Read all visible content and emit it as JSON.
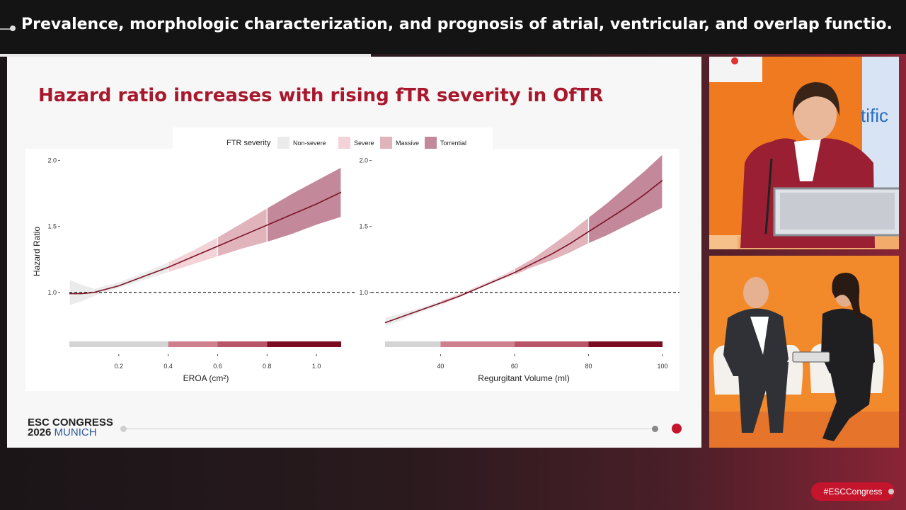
{
  "header": {
    "title": "Prevalence, morphologic characterization, and prognosis of atrial, ventricular, and overlap functio..."
  },
  "slide": {
    "title": "Hazard ratio increases with rising fTR severity in OfTR",
    "legend": {
      "title": "FTR severity",
      "items": [
        {
          "label": "Non-severe",
          "color": "#ebebeb"
        },
        {
          "label": "Severe",
          "color": "#f3d3d8"
        },
        {
          "label": "Massive",
          "color": "#e1b3bb"
        },
        {
          "label": "Torrential",
          "color": "#c3899a"
        }
      ]
    },
    "logo_line1": "ESC CONGRESS",
    "logo_year": "2026",
    "logo_city": "MUNICH"
  },
  "chart_data": [
    {
      "type": "line",
      "xlabel": "EROA (cm²)",
      "ylabel": "Hazard Ratio",
      "xlim": [
        0.0,
        1.1
      ],
      "ylim": [
        0.8,
        2.1
      ],
      "xticks": [
        "0.2",
        "0.4",
        "0.6",
        "0.8",
        "1.0"
      ],
      "yticks": [
        "1.0",
        "1.5",
        "2.0"
      ],
      "reference_line": 1.0,
      "series": [
        {
          "x": [
            0.0,
            0.05,
            0.1,
            0.2,
            0.3,
            0.4,
            0.5,
            0.6,
            0.7,
            0.8,
            0.9,
            1.0,
            1.1
          ],
          "y": [
            0.99,
            0.99,
            1.0,
            1.05,
            1.12,
            1.19,
            1.27,
            1.35,
            1.43,
            1.51,
            1.59,
            1.67,
            1.76
          ],
          "lower": [
            0.9,
            0.93,
            0.97,
            1.03,
            1.09,
            1.15,
            1.21,
            1.27,
            1.33,
            1.38,
            1.44,
            1.51,
            1.57
          ],
          "upper": [
            1.1,
            1.06,
            1.03,
            1.08,
            1.15,
            1.23,
            1.32,
            1.42,
            1.53,
            1.64,
            1.75,
            1.85,
            1.95
          ]
        }
      ],
      "severity_bands": [
        {
          "from": 0.0,
          "to": 0.4,
          "level": "Non-severe"
        },
        {
          "from": 0.4,
          "to": 0.6,
          "level": "Severe"
        },
        {
          "from": 0.6,
          "to": 0.8,
          "level": "Massive"
        },
        {
          "from": 0.8,
          "to": 1.1,
          "level": "Torrential"
        }
      ]
    },
    {
      "type": "line",
      "xlabel": "Regurgitant Volume (ml)",
      "ylabel": "",
      "xlim": [
        25,
        100
      ],
      "ylim": [
        0.8,
        2.1
      ],
      "xticks": [
        "40",
        "60",
        "80",
        "100"
      ],
      "yticks": [
        "1.0",
        "1.5",
        "2.0"
      ],
      "reference_line": 1.0,
      "series": [
        {
          "x": [
            25,
            30,
            35,
            40,
            45,
            50,
            55,
            60,
            65,
            70,
            75,
            80,
            85,
            90,
            95,
            100
          ],
          "y": [
            0.77,
            0.82,
            0.87,
            0.92,
            0.97,
            1.03,
            1.09,
            1.15,
            1.22,
            1.29,
            1.37,
            1.46,
            1.55,
            1.64,
            1.74,
            1.85
          ],
          "lower": [
            0.74,
            0.79,
            0.85,
            0.9,
            0.96,
            1.02,
            1.08,
            1.13,
            1.19,
            1.24,
            1.3,
            1.37,
            1.43,
            1.5,
            1.57,
            1.64
          ],
          "upper": [
            0.81,
            0.85,
            0.89,
            0.94,
            0.99,
            1.05,
            1.11,
            1.18,
            1.26,
            1.36,
            1.46,
            1.57,
            1.68,
            1.8,
            1.92,
            2.05
          ]
        }
      ],
      "severity_bands": [
        {
          "from": 25,
          "to": 40,
          "level": "Non-severe"
        },
        {
          "from": 40,
          "to": 60,
          "level": "Severe"
        },
        {
          "from": 60,
          "to": 80,
          "level": "Massive"
        },
        {
          "from": 80,
          "to": 100,
          "level": "Torrential"
        }
      ]
    }
  ],
  "footer": {
    "hashtag": "#ESCCongress"
  }
}
